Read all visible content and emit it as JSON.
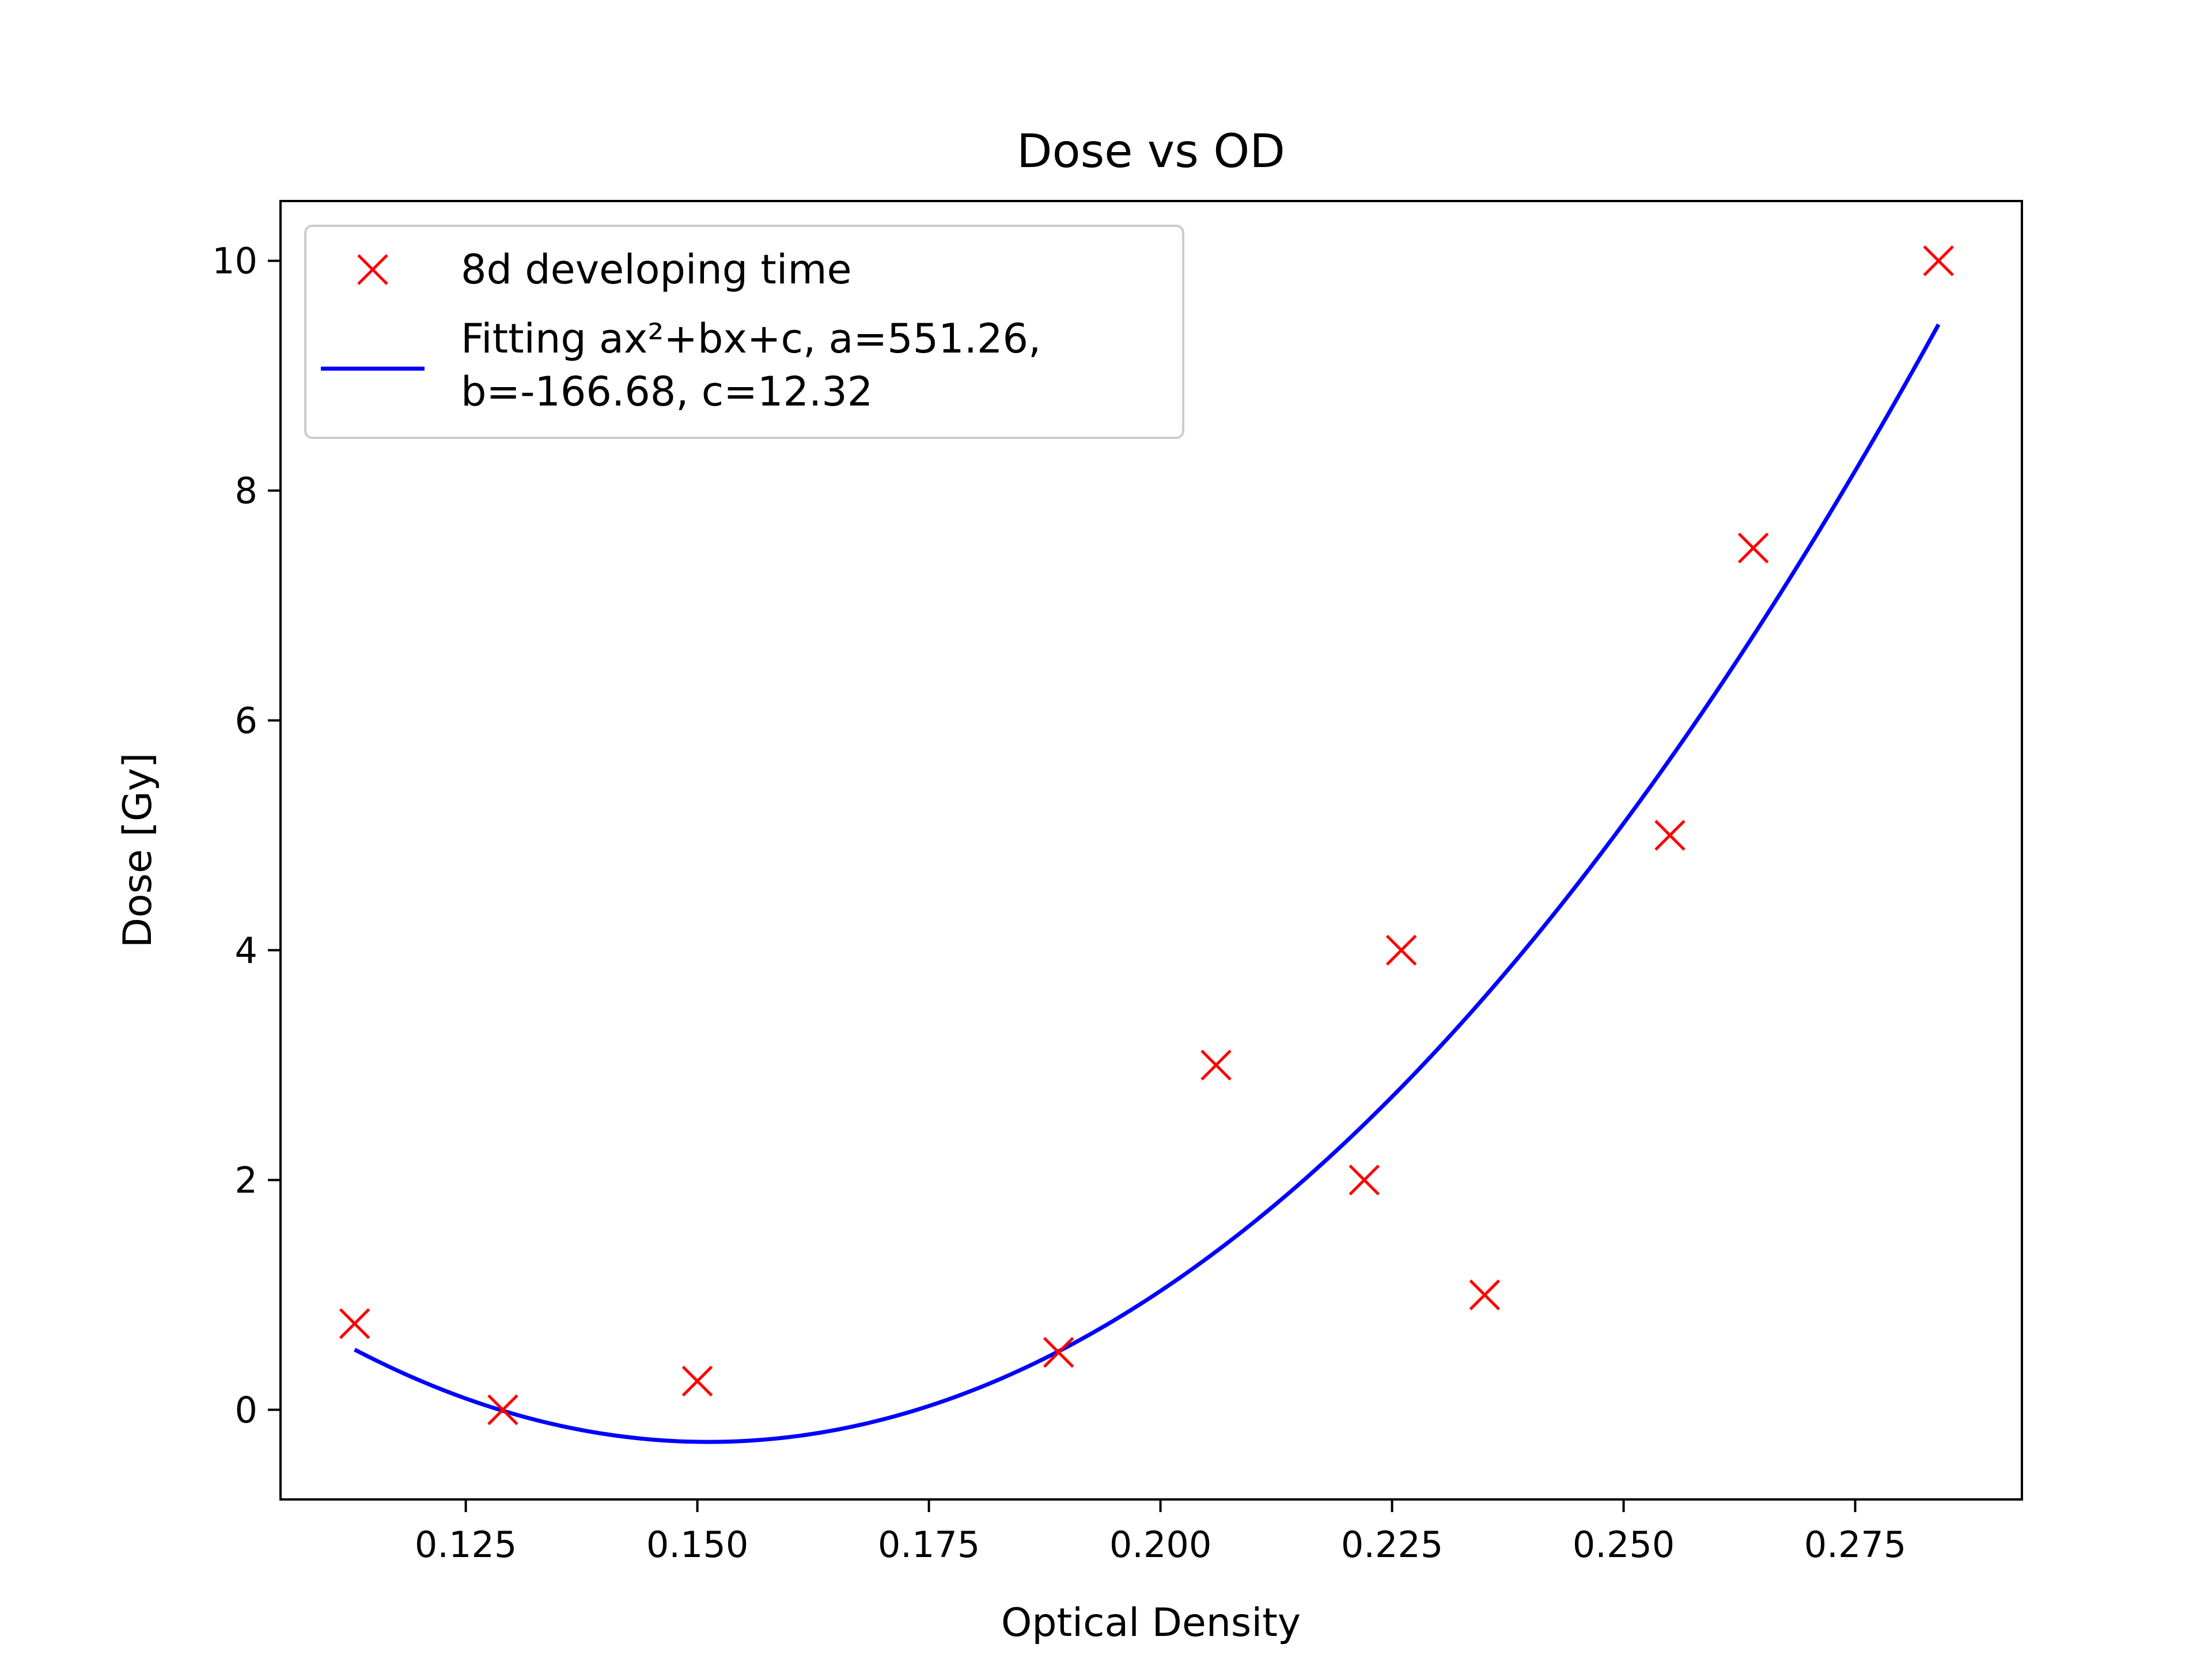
{
  "chart_data": {
    "type": "scatter",
    "title": "Dose vs OD",
    "xlabel": "Optical Density",
    "ylabel": "Dose [Gy]",
    "xlim": [
      0.105,
      0.293
    ],
    "ylim": [
      -0.78,
      10.52
    ],
    "x_ticks": [
      0.125,
      0.15,
      0.175,
      0.2,
      0.225,
      0.25,
      0.275
    ],
    "x_tick_labels": [
      "0.125",
      "0.150",
      "0.175",
      "0.200",
      "0.225",
      "0.250",
      "0.275"
    ],
    "y_ticks": [
      0,
      2,
      4,
      6,
      8,
      10
    ],
    "y_tick_labels": [
      "0",
      "2",
      "4",
      "6",
      "8",
      "10"
    ],
    "grid": false,
    "legend_position": "top-left",
    "series": [
      {
        "name": "8d developing time",
        "kind": "scatter",
        "marker": "x",
        "color": "#ff0000",
        "x": [
          0.113,
          0.129,
          0.15,
          0.189,
          0.206,
          0.222,
          0.226,
          0.235,
          0.255,
          0.264,
          0.284
        ],
        "y": [
          0.75,
          0.0,
          0.25,
          0.5,
          3.0,
          2.0,
          4.0,
          1.0,
          5.0,
          7.5,
          10.0
        ]
      },
      {
        "name": "Fitting ax²+bx+c, a=551.26, b=-166.68, c=12.32",
        "legend_lines": [
          "Fitting ax²+bx+c, a=551.26,",
          "b=-166.68, c=12.32"
        ],
        "kind": "line",
        "color": "#0000ff",
        "fit": {
          "a": 551.26,
          "b": -166.68,
          "c": 12.32
        },
        "x_range": [
          0.113,
          0.284
        ]
      }
    ]
  }
}
